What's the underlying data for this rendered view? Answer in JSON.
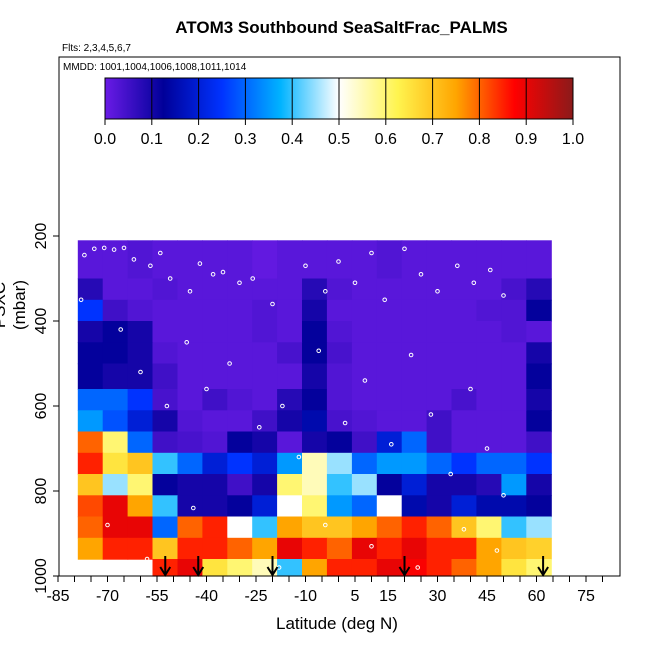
{
  "chart_data": {
    "type": "heatmap",
    "title": "ATOM3 Southbound SeaSaltFrac_PALMS",
    "subtitle_flights": "Flts: 2,3,4,5,6,7",
    "subtitle_dates": "MMDD: 1001,1004,1006,1008,1011,1014",
    "xlabel": "Latitude (deg N)",
    "ylabel": "PSXC (mbar)",
    "xlim": [
      -85,
      85
    ],
    "ylim": [
      1000,
      150
    ],
    "x_ticks": [
      -85,
      -70,
      -55,
      -40,
      -25,
      -10,
      5,
      15,
      30,
      45,
      60,
      75
    ],
    "y_ticks": [
      200,
      400,
      600,
      800,
      1000
    ],
    "colorbar": {
      "ticks": [
        "0.0",
        "0.1",
        "0.2",
        "0.3",
        "0.4",
        "0.5",
        "0.6",
        "0.7",
        "0.8",
        "0.9",
        "1.0"
      ],
      "range": [
        0,
        1
      ],
      "colors": [
        "#6a1be6",
        "#000099",
        "#0033ff",
        "#00b3ff",
        "#ffffff",
        "#fff44f",
        "#ffa500",
        "#ff0000",
        "#8b1a1a"
      ]
    },
    "pressure_bands": [
      {
        "p_top": 210,
        "p_bottom": 300,
        "values": [
          0.02,
          0.02,
          0.03,
          0.02,
          0.02,
          0.02,
          0.02,
          0.01,
          0.02,
          0.02,
          0.02,
          0.02,
          0.03,
          0.02,
          0.02,
          0.02,
          0.02,
          0.02,
          0.02
        ]
      },
      {
        "p_top": 300,
        "p_bottom": 350,
        "values": [
          0.08,
          0.02,
          0.02,
          0.03,
          0.02,
          0.02,
          0.02,
          0.02,
          0.02,
          0.08,
          0.03,
          0.02,
          0.02,
          0.02,
          0.02,
          0.02,
          0.02,
          0.04,
          0.08
        ]
      },
      {
        "p_top": 350,
        "p_bottom": 400,
        "values": [
          0.25,
          0.05,
          0.03,
          0.02,
          0.02,
          0.02,
          0.02,
          0.03,
          0.02,
          0.1,
          0.02,
          0.02,
          0.02,
          0.02,
          0.02,
          0.02,
          0.03,
          0.03,
          0.12
        ]
      },
      {
        "p_top": 400,
        "p_bottom": 450,
        "values": [
          0.1,
          0.12,
          0.1,
          0.02,
          0.02,
          0.02,
          0.02,
          0.03,
          0.02,
          0.12,
          0.03,
          0.02,
          0.02,
          0.02,
          0.02,
          0.02,
          0.02,
          0.03,
          0.02
        ]
      },
      {
        "p_top": 450,
        "p_bottom": 500,
        "values": [
          0.12,
          0.12,
          0.1,
          0.03,
          0.02,
          0.02,
          0.02,
          0.02,
          0.04,
          0.12,
          0.04,
          0.02,
          0.02,
          0.02,
          0.02,
          0.02,
          0.02,
          0.02,
          0.1
        ]
      },
      {
        "p_top": 500,
        "p_bottom": 560,
        "values": [
          0.12,
          0.1,
          0.1,
          0.05,
          0.02,
          0.02,
          0.02,
          0.02,
          0.02,
          0.1,
          0.03,
          0.02,
          0.02,
          0.02,
          0.02,
          0.02,
          0.02,
          0.02,
          0.12
        ]
      },
      {
        "p_top": 560,
        "p_bottom": 610,
        "values": [
          0.3,
          0.3,
          0.25,
          0.04,
          0.02,
          0.05,
          0.03,
          0.02,
          0.08,
          0.12,
          0.03,
          0.02,
          0.02,
          0.02,
          0.02,
          0.04,
          0.02,
          0.02,
          0.1
        ]
      },
      {
        "p_top": 610,
        "p_bottom": 660,
        "values": [
          0.35,
          0.28,
          0.2,
          0.1,
          0.03,
          0.02,
          0.02,
          0.05,
          0.1,
          0.15,
          0.04,
          0.03,
          0.02,
          0.02,
          0.05,
          0.02,
          0.02,
          0.02,
          0.12
        ]
      },
      {
        "p_top": 660,
        "p_bottom": 710,
        "values": [
          0.8,
          0.6,
          0.3,
          0.05,
          0.04,
          0.03,
          0.12,
          0.1,
          0.02,
          0.1,
          0.12,
          0.05,
          0.2,
          0.3,
          0.05,
          0.02,
          0.02,
          0.02,
          0.05
        ]
      },
      {
        "p_top": 710,
        "p_bottom": 760,
        "values": [
          0.85,
          0.65,
          0.7,
          0.4,
          0.3,
          0.2,
          0.25,
          0.2,
          0.35,
          0.55,
          0.45,
          0.3,
          0.35,
          0.35,
          0.3,
          0.25,
          0.3,
          0.3,
          0.25
        ]
      },
      {
        "p_top": 760,
        "p_bottom": 810,
        "values": [
          0.7,
          0.45,
          0.6,
          0.12,
          0.1,
          0.1,
          0.05,
          0.1,
          0.6,
          0.55,
          0.4,
          0.45,
          0.12,
          0.2,
          0.1,
          0.1,
          0.08,
          0.35,
          0.1
        ]
      },
      {
        "p_top": 810,
        "p_bottom": 860,
        "values": [
          0.82,
          0.9,
          0.75,
          0.4,
          0.1,
          0.1,
          0.12,
          0.2,
          0.5,
          0.6,
          0.35,
          0.3,
          0.5,
          0.15,
          0.1,
          0.2,
          0.15,
          0.15,
          0.12
        ]
      },
      {
        "p_top": 860,
        "p_bottom": 910,
        "values": [
          0.8,
          0.9,
          0.9,
          0.3,
          0.8,
          0.85,
          0.5,
          0.4,
          0.75,
          0.7,
          0.7,
          0.75,
          0.8,
          0.85,
          0.8,
          0.7,
          0.6,
          0.4,
          0.45
        ]
      },
      {
        "p_top": 910,
        "p_bottom": 960,
        "values": [
          0.75,
          0.85,
          0.85,
          0.7,
          0.85,
          0.85,
          0.8,
          0.75,
          0.9,
          0.85,
          0.8,
          0.9,
          0.85,
          0.9,
          0.85,
          0.85,
          0.75,
          0.7,
          0.68
        ]
      },
      {
        "p_top": 960,
        "p_bottom": 1000,
        "values": [
          null,
          null,
          null,
          0.85,
          0.9,
          0.65,
          0.6,
          0.55,
          0.4,
          0.75,
          0.85,
          0.85,
          0.9,
          0.88,
          0.85,
          0.8,
          0.75,
          0.65,
          0.6
        ]
      }
    ],
    "band_lat_start": -79,
    "band_lat_step": 7.55,
    "arrows_lat": [
      -52.5,
      -42.5,
      -20,
      20,
      62
    ],
    "observations": [
      {
        "lat": -80,
        "p": 230
      },
      {
        "lat": -77,
        "p": 245
      },
      {
        "lat": -74,
        "p": 230
      },
      {
        "lat": -71,
        "p": 228
      },
      {
        "lat": -68,
        "p": 232
      },
      {
        "lat": -65,
        "p": 228
      },
      {
        "lat": -62,
        "p": 255
      },
      {
        "lat": -57,
        "p": 270
      },
      {
        "lat": -54,
        "p": 240
      },
      {
        "lat": -51,
        "p": 300
      },
      {
        "lat": -48,
        "p": 190
      },
      {
        "lat": -45,
        "p": 330
      },
      {
        "lat": -42,
        "p": 265
      },
      {
        "lat": -38,
        "p": 290
      },
      {
        "lat": -35,
        "p": 285
      },
      {
        "lat": -30,
        "p": 310
      },
      {
        "lat": -26,
        "p": 300
      },
      {
        "lat": -20,
        "p": 360
      },
      {
        "lat": -15,
        "p": 200
      },
      {
        "lat": -10,
        "p": 270
      },
      {
        "lat": -4,
        "p": 330
      },
      {
        "lat": 0,
        "p": 260
      },
      {
        "lat": 5,
        "p": 310
      },
      {
        "lat": 10,
        "p": 240
      },
      {
        "lat": 14,
        "p": 350
      },
      {
        "lat": 20,
        "p": 230
      },
      {
        "lat": 25,
        "p": 290
      },
      {
        "lat": 30,
        "p": 330
      },
      {
        "lat": 36,
        "p": 270
      },
      {
        "lat": 41,
        "p": 310
      },
      {
        "lat": 46,
        "p": 280
      },
      {
        "lat": 50,
        "p": 340
      },
      {
        "lat": -78,
        "p": 350
      },
      {
        "lat": -66,
        "p": 420
      },
      {
        "lat": -60,
        "p": 520
      },
      {
        "lat": -52,
        "p": 600
      },
      {
        "lat": -46,
        "p": 450
      },
      {
        "lat": -40,
        "p": 560
      },
      {
        "lat": -33,
        "p": 500
      },
      {
        "lat": -24,
        "p": 650
      },
      {
        "lat": -17,
        "p": 600
      },
      {
        "lat": -12,
        "p": 720
      },
      {
        "lat": -6,
        "p": 470
      },
      {
        "lat": 2,
        "p": 640
      },
      {
        "lat": 8,
        "p": 540
      },
      {
        "lat": 16,
        "p": 690
      },
      {
        "lat": 22,
        "p": 480
      },
      {
        "lat": 28,
        "p": 620
      },
      {
        "lat": 34,
        "p": 760
      },
      {
        "lat": 40,
        "p": 560
      },
      {
        "lat": 45,
        "p": 700
      },
      {
        "lat": 50,
        "p": 810
      },
      {
        "lat": -70,
        "p": 880
      },
      {
        "lat": -58,
        "p": 960
      },
      {
        "lat": -44,
        "p": 840
      },
      {
        "lat": -30,
        "p": 900
      },
      {
        "lat": -18,
        "p": 980
      },
      {
        "lat": -4,
        "p": 880
      },
      {
        "lat": 10,
        "p": 930
      },
      {
        "lat": 24,
        "p": 980
      },
      {
        "lat": 38,
        "p": 890
      },
      {
        "lat": 48,
        "p": 940
      }
    ]
  }
}
